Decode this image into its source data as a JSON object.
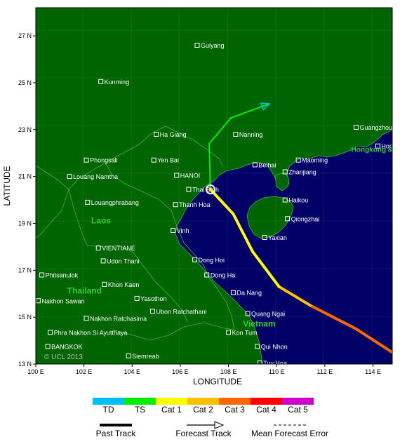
{
  "axes": {
    "x_label": "LONGITUDE",
    "y_label": "LATITUDE",
    "x_ticks": [
      "100 E",
      "102 E",
      "104 E",
      "106 E",
      "108 E",
      "110 E",
      "112 E",
      "114 E"
    ],
    "y_ticks": [
      "27 N",
      "25 N",
      "23 N",
      "21 N",
      "19 N",
      "17 N",
      "15 N",
      "13 N"
    ],
    "lon_range": [
      100,
      114.8
    ],
    "lat_range": [
      13,
      28.2
    ]
  },
  "cities": [
    {
      "name": "Guiyang",
      "lon": 106.7,
      "lat": 26.6
    },
    {
      "name": "Kunming",
      "lon": 102.7,
      "lat": 25.05
    },
    {
      "name": "Ha Giang",
      "lon": 105.0,
      "lat": 22.8
    },
    {
      "name": "Nanning",
      "lon": 108.3,
      "lat": 22.8
    },
    {
      "name": "Guangzhou",
      "lon": 113.3,
      "lat": 23.1
    },
    {
      "name": "Hong Kong",
      "lon": 114.2,
      "lat": 22.3
    },
    {
      "name": "Phongsali",
      "lon": 102.1,
      "lat": 21.7
    },
    {
      "name": "Yen Bai",
      "lon": 104.9,
      "lat": 21.7
    },
    {
      "name": "Beihai",
      "lon": 109.1,
      "lat": 21.5
    },
    {
      "name": "Maoming",
      "lon": 110.9,
      "lat": 21.7
    },
    {
      "name": "HANOI",
      "lon": 105.85,
      "lat": 21.05
    },
    {
      "name": "Zhanjiang",
      "lon": 110.35,
      "lat": 21.2
    },
    {
      "name": "Louang Namtha",
      "lon": 101.4,
      "lat": 21.0
    },
    {
      "name": "Thai Binh",
      "lon": 106.35,
      "lat": 20.45
    },
    {
      "name": "Haikou",
      "lon": 110.35,
      "lat": 20.0
    },
    {
      "name": "Louangphrabang",
      "lon": 102.15,
      "lat": 19.9
    },
    {
      "name": "Thanh Hoa",
      "lon": 105.8,
      "lat": 19.8
    },
    {
      "name": "Qiongzhai",
      "lon": 110.45,
      "lat": 19.2
    },
    {
      "name": "Vinh",
      "lon": 105.7,
      "lat": 18.7
    },
    {
      "name": "Yaxian",
      "lon": 109.5,
      "lat": 18.4
    },
    {
      "name": "VIENTIANE",
      "lon": 102.6,
      "lat": 17.95
    },
    {
      "name": "Udon Thani",
      "lon": 102.8,
      "lat": 17.4
    },
    {
      "name": "Dong Hoi",
      "lon": 106.6,
      "lat": 17.45
    },
    {
      "name": "Phitsanulok",
      "lon": 100.25,
      "lat": 16.8
    },
    {
      "name": "Dong Ha",
      "lon": 107.1,
      "lat": 16.8
    },
    {
      "name": "Khon Kaen",
      "lon": 102.85,
      "lat": 16.4
    },
    {
      "name": "Da Nang",
      "lon": 108.2,
      "lat": 16.05
    },
    {
      "name": "Nakhon Sawan",
      "lon": 100.1,
      "lat": 15.7
    },
    {
      "name": "Yasothon",
      "lon": 104.2,
      "lat": 15.8
    },
    {
      "name": "Ubon Ratchathani",
      "lon": 104.85,
      "lat": 15.25
    },
    {
      "name": "Quang Ngai",
      "lon": 108.8,
      "lat": 15.15
    },
    {
      "name": "Nakhon Ratchasima",
      "lon": 102.1,
      "lat": 14.95
    },
    {
      "name": "Phra Nakhon Si Ayutthaya",
      "lon": 100.6,
      "lat": 14.35
    },
    {
      "name": "Kon Tum",
      "lon": 108.0,
      "lat": 14.35
    },
    {
      "name": "BANGKOK",
      "lon": 100.5,
      "lat": 13.75
    },
    {
      "name": "Qui Nhon",
      "lon": 109.2,
      "lat": 13.75
    },
    {
      "name": "Siemreab",
      "lon": 103.85,
      "lat": 13.35
    },
    {
      "name": "Tuy Hoa",
      "lon": 109.3,
      "lat": 13.05
    }
  ],
  "region_labels": [
    {
      "name": "Laos",
      "lon": 102.3,
      "lat": 19.0
    },
    {
      "name": "Thailand",
      "lon": 101.3,
      "lat": 16.0
    },
    {
      "name": "Vietnam",
      "lon": 108.6,
      "lat": 14.6
    },
    {
      "name": "Hongkong & Macau",
      "lon": 113.1,
      "lat": 22.05
    }
  ],
  "copyright": "© UCL 2013",
  "past_track": [
    {
      "lon": 114.8,
      "lat": 13.5,
      "category": "Cat 3"
    },
    {
      "lon": 113.3,
      "lat": 14.5,
      "category": "Cat 3"
    },
    {
      "lon": 111.4,
      "lat": 15.5,
      "category": "Cat 3"
    },
    {
      "lon": 110.1,
      "lat": 16.3,
      "category": "Cat 2"
    },
    {
      "lon": 109.0,
      "lat": 17.8,
      "category": "Cat 1"
    },
    {
      "lon": 108.2,
      "lat": 19.4,
      "category": "Cat 1"
    },
    {
      "lon": 107.25,
      "lat": 20.45,
      "category": "Cat 1"
    }
  ],
  "current_position": {
    "lon": 107.25,
    "lat": 20.45
  },
  "forecast_track": [
    {
      "lon": 107.25,
      "lat": 20.45,
      "category": "Cat 1"
    },
    {
      "lon": 107.2,
      "lat": 22.4,
      "category": "TS"
    },
    {
      "lon": 108.1,
      "lat": 23.5,
      "category": "TS"
    },
    {
      "lon": 109.7,
      "lat": 24.1,
      "category": "TS"
    }
  ],
  "colors": {
    "land": "#006400",
    "sea": "#000066",
    "border": "#33bb33",
    "city_text": "#ffffff",
    "region_text": "#33cc33",
    "TD": "#00bfff",
    "TS": "#00ee00",
    "Cat 1": "#ffff00",
    "Cat 2": "#ffc000",
    "Cat 3": "#ff6600",
    "Cat 4": "#ff0000",
    "Cat 5": "#cc00cc"
  },
  "legend": {
    "categories": [
      "TD",
      "TS",
      "Cat 1",
      "Cat 2",
      "Cat 3",
      "Cat 4",
      "Cat 5"
    ],
    "past_track_label": "Past Track",
    "forecast_track_label": "Forecast Track",
    "error_label": "Mean Forecast Error"
  }
}
